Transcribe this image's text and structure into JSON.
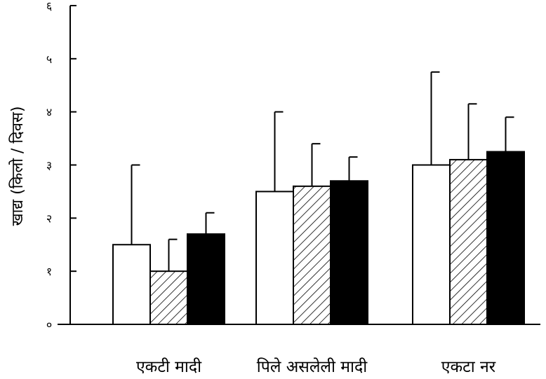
{
  "chart_data": {
    "type": "bar",
    "title": "",
    "xlabel": "",
    "ylabel": "खाद्य (किलो / दिवस)",
    "categories": [
      "एकटी मादी",
      "पिले असलेली मादी",
      "एकटा नर"
    ],
    "series": [
      {
        "fill": "white",
        "values": [
          1.5,
          2.5,
          3.0
        ],
        "errors": [
          1.5,
          1.5,
          1.75
        ]
      },
      {
        "fill": "hatched",
        "values": [
          1.0,
          2.6,
          3.1
        ],
        "errors": [
          0.6,
          0.8,
          1.05
        ]
      },
      {
        "fill": "black",
        "values": [
          1.7,
          2.7,
          3.25
        ],
        "errors": [
          0.4,
          0.45,
          0.65
        ]
      }
    ],
    "ylim": [
      0,
      6
    ],
    "yticks": [
      0,
      1,
      2,
      3,
      4,
      5,
      6
    ],
    "ytick_labels": [
      "०",
      "१",
      "२",
      "३",
      "४",
      "५",
      "६"
    ],
    "grid": false,
    "legend": "none"
  }
}
